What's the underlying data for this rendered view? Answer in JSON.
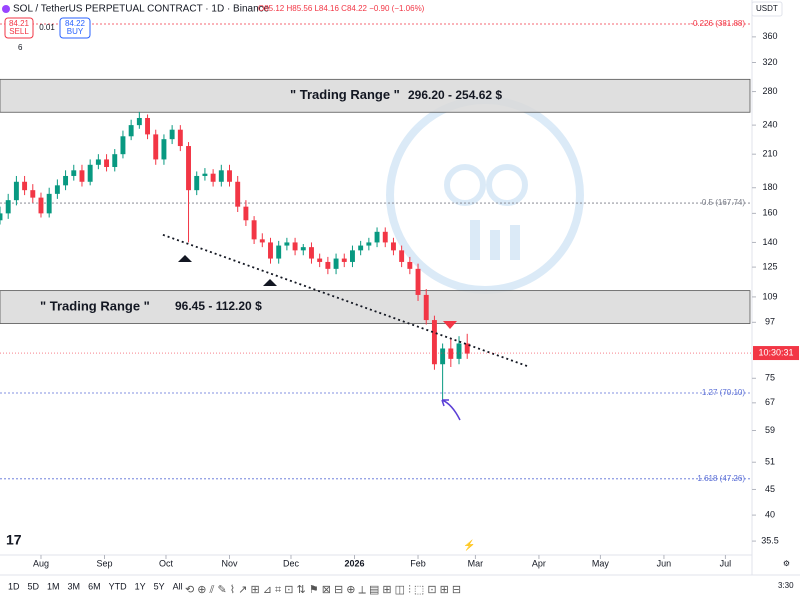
{
  "chart_data": {
    "type": "candlestick",
    "title": "SOL / TetherUS PERPETUAL CONTRACT · 1D · Binance",
    "ohlc_text": "O85.12 H85.56 L84.16 C84.22 −0.90 (−1.06%)",
    "sell": {
      "price": "84.21",
      "label": "SELL"
    },
    "spread": "0.01",
    "buy": {
      "price": "84.22",
      "label": "BUY"
    },
    "indicator_count": "6",
    "currency": "USDT",
    "countdown": "10:30:31",
    "last_price": 84.22,
    "log_scale": true,
    "up_color": "#089981",
    "down_color": "#f23645",
    "xlim": [
      0,
      366
    ],
    "xticks": [
      {
        "value": 20,
        "label": "Aug"
      },
      {
        "value": 51,
        "label": "Sep"
      },
      {
        "value": 81,
        "label": "Oct"
      },
      {
        "value": 112,
        "label": "Nov"
      },
      {
        "value": 142,
        "label": "Dec"
      },
      {
        "value": 173,
        "label": "2026"
      },
      {
        "value": 204,
        "label": "Feb"
      },
      {
        "value": 232,
        "label": "Mar"
      },
      {
        "value": 263,
        "label": "Apr"
      },
      {
        "value": 293,
        "label": "May"
      },
      {
        "value": 324,
        "label": "Jun"
      },
      {
        "value": 354,
        "label": "Jul"
      }
    ],
    "ylim": [
      33.3,
      392.6
    ],
    "yticks": [
      360,
      320,
      280,
      240,
      210,
      180,
      160,
      140,
      125,
      109,
      97,
      75,
      67,
      59,
      51,
      45,
      40,
      35.5
    ],
    "x": [
      0,
      4,
      8,
      12,
      16,
      20,
      24,
      28,
      32,
      36,
      40,
      44,
      48,
      52,
      56,
      60,
      64,
      68,
      72,
      76,
      80,
      84,
      88,
      92,
      96,
      100,
      104,
      108,
      112,
      116,
      120,
      124,
      128,
      132,
      136,
      140,
      144,
      148,
      152,
      156,
      160,
      164,
      168,
      172,
      176,
      180,
      184,
      188,
      192,
      196,
      200,
      204,
      208,
      212,
      216,
      220,
      224,
      228
    ],
    "open": [
      155,
      160,
      170,
      185,
      178,
      172,
      160,
      175,
      182,
      190,
      195,
      185,
      200,
      205,
      198,
      210,
      228,
      240,
      248,
      230,
      205,
      225,
      235,
      218,
      178,
      190,
      192,
      185,
      195,
      185,
      165,
      155,
      142,
      140,
      130,
      138,
      140,
      135,
      137,
      130,
      128,
      124,
      130,
      128,
      135,
      138,
      140,
      147,
      140,
      135,
      128,
      124,
      110,
      98,
      80,
      86,
      82,
      88
    ],
    "high": [
      165,
      175,
      190,
      190,
      183,
      176,
      180,
      187,
      195,
      200,
      200,
      205,
      210,
      210,
      215,
      234,
      246,
      255,
      252,
      235,
      230,
      240,
      240,
      222,
      194,
      197,
      196,
      200,
      200,
      190,
      170,
      158,
      146,
      143,
      141,
      143,
      143,
      139,
      140,
      133,
      131,
      133,
      133,
      138,
      141,
      143,
      150,
      150,
      143,
      138,
      131,
      127,
      113,
      100,
      88,
      90,
      91,
      92
    ],
    "low": [
      152,
      156,
      166,
      174,
      168,
      157,
      157,
      171,
      178,
      186,
      181,
      182,
      196,
      194,
      194,
      206,
      224,
      236,
      225,
      200,
      200,
      220,
      213,
      140,
      174,
      186,
      181,
      181,
      181,
      161,
      151,
      139,
      137,
      127,
      127,
      135,
      132,
      132,
      127,
      125,
      121,
      121,
      125,
      125,
      132,
      135,
      137,
      137,
      132,
      125,
      121,
      107,
      96,
      78,
      67,
      79,
      80,
      82
    ],
    "close": [
      160,
      170,
      185,
      178,
      172,
      160,
      175,
      182,
      190,
      195,
      185,
      200,
      205,
      198,
      210,
      228,
      240,
      248,
      230,
      205,
      225,
      235,
      218,
      178,
      190,
      192,
      185,
      195,
      185,
      165,
      155,
      142,
      140,
      130,
      138,
      140,
      135,
      137,
      130,
      128,
      124,
      130,
      128,
      135,
      138,
      140,
      147,
      140,
      135,
      128,
      124,
      110,
      98,
      80,
      86,
      82,
      88,
      84
    ],
    "ranges": [
      {
        "label": "\" Trading Range \"",
        "text": "296.20 - 254.62 $",
        "top": 296.2,
        "bottom": 254.62
      },
      {
        "label": "\" Trading Range \"",
        "text": "96.45 - 112.20 $",
        "top": 112.2,
        "bottom": 96.45
      }
    ],
    "levels": [
      {
        "label": "-0.226 (381.88)",
        "value": 381.88,
        "color": "#f23645"
      },
      {
        "label": "0.5 (167.74)",
        "value": 167.74,
        "color": "#787b86"
      },
      {
        "label": "1.27 (70.10)",
        "value": 70.1,
        "color": "#5b6fd6"
      },
      {
        "label": "1.618 (47.26)",
        "value": 47.26,
        "color": "#5b6fd6"
      }
    ],
    "trendline": {
      "x": [
        79.5,
        258.5
      ],
      "y": [
        145,
        79
      ]
    },
    "timeframes": [
      "1D",
      "5D",
      "1M",
      "3M",
      "6M",
      "YTD",
      "1Y",
      "5Y",
      "All"
    ],
    "clock": "3:30"
  }
}
